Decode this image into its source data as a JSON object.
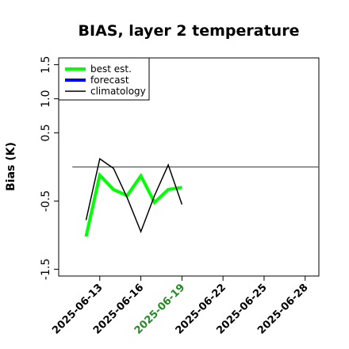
{
  "chart_data": {
    "type": "line",
    "title": "BIAS, layer 2 temperature",
    "xlabel": "",
    "ylabel": "Bias (K)",
    "ylim": [
      -1.6,
      1.6
    ],
    "yticks": [
      {
        "value": -1.5,
        "label": "-1.5"
      },
      {
        "value": -0.5,
        "label": "-0.5"
      },
      {
        "value": 0.5,
        "label": "0.5"
      },
      {
        "value": 1.0,
        "label": "1.0"
      },
      {
        "value": 1.5,
        "label": "1.5"
      }
    ],
    "xlim": [
      "2025-06-10",
      "2025-06-29"
    ],
    "xticks": [
      {
        "value": "2025-06-13",
        "label": "2025-06-13",
        "color": "#000000"
      },
      {
        "value": "2025-06-16",
        "label": "2025-06-16",
        "color": "#000000"
      },
      {
        "value": "2025-06-19",
        "label": "2025-06-19",
        "color": "#228B22"
      },
      {
        "value": "2025-06-22",
        "label": "2025-06-22",
        "color": "#000000"
      },
      {
        "value": "2025-06-25",
        "label": "2025-06-25",
        "color": "#000000"
      },
      {
        "value": "2025-06-28",
        "label": "2025-06-28",
        "color": "#000000"
      }
    ],
    "reference_line": {
      "y": 0,
      "from": "2025-06-11",
      "to": "2025-06-29",
      "color": "#555555"
    },
    "legend": {
      "position": "top-left",
      "entries": [
        {
          "name": "best est.",
          "color": "#00ff00",
          "width": 4
        },
        {
          "name": "forecast",
          "color": "#0000ff",
          "width": 4
        },
        {
          "name": "climatology",
          "color": "#000000",
          "width": 1.5
        }
      ]
    },
    "series": [
      {
        "name": "best est.",
        "color": "#00ff00",
        "width": 4,
        "x": [
          "2025-06-12",
          "2025-06-13",
          "2025-06-14",
          "2025-06-15",
          "2025-06-16",
          "2025-06-17",
          "2025-06-18",
          "2025-06-19"
        ],
        "y": [
          -1.02,
          -0.12,
          -0.33,
          -0.42,
          -0.13,
          -0.52,
          -0.33,
          -0.3
        ]
      },
      {
        "name": "forecast",
        "color": "#0000ff",
        "width": 4,
        "x": [],
        "y": []
      },
      {
        "name": "climatology",
        "color": "#000000",
        "width": 1.5,
        "x": [
          "2025-06-12",
          "2025-06-13",
          "2025-06-14",
          "2025-06-15",
          "2025-06-16",
          "2025-06-17",
          "2025-06-18",
          "2025-06-19"
        ],
        "y": [
          -0.78,
          0.12,
          -0.02,
          -0.45,
          -0.95,
          -0.42,
          0.03,
          -0.55
        ]
      }
    ]
  }
}
